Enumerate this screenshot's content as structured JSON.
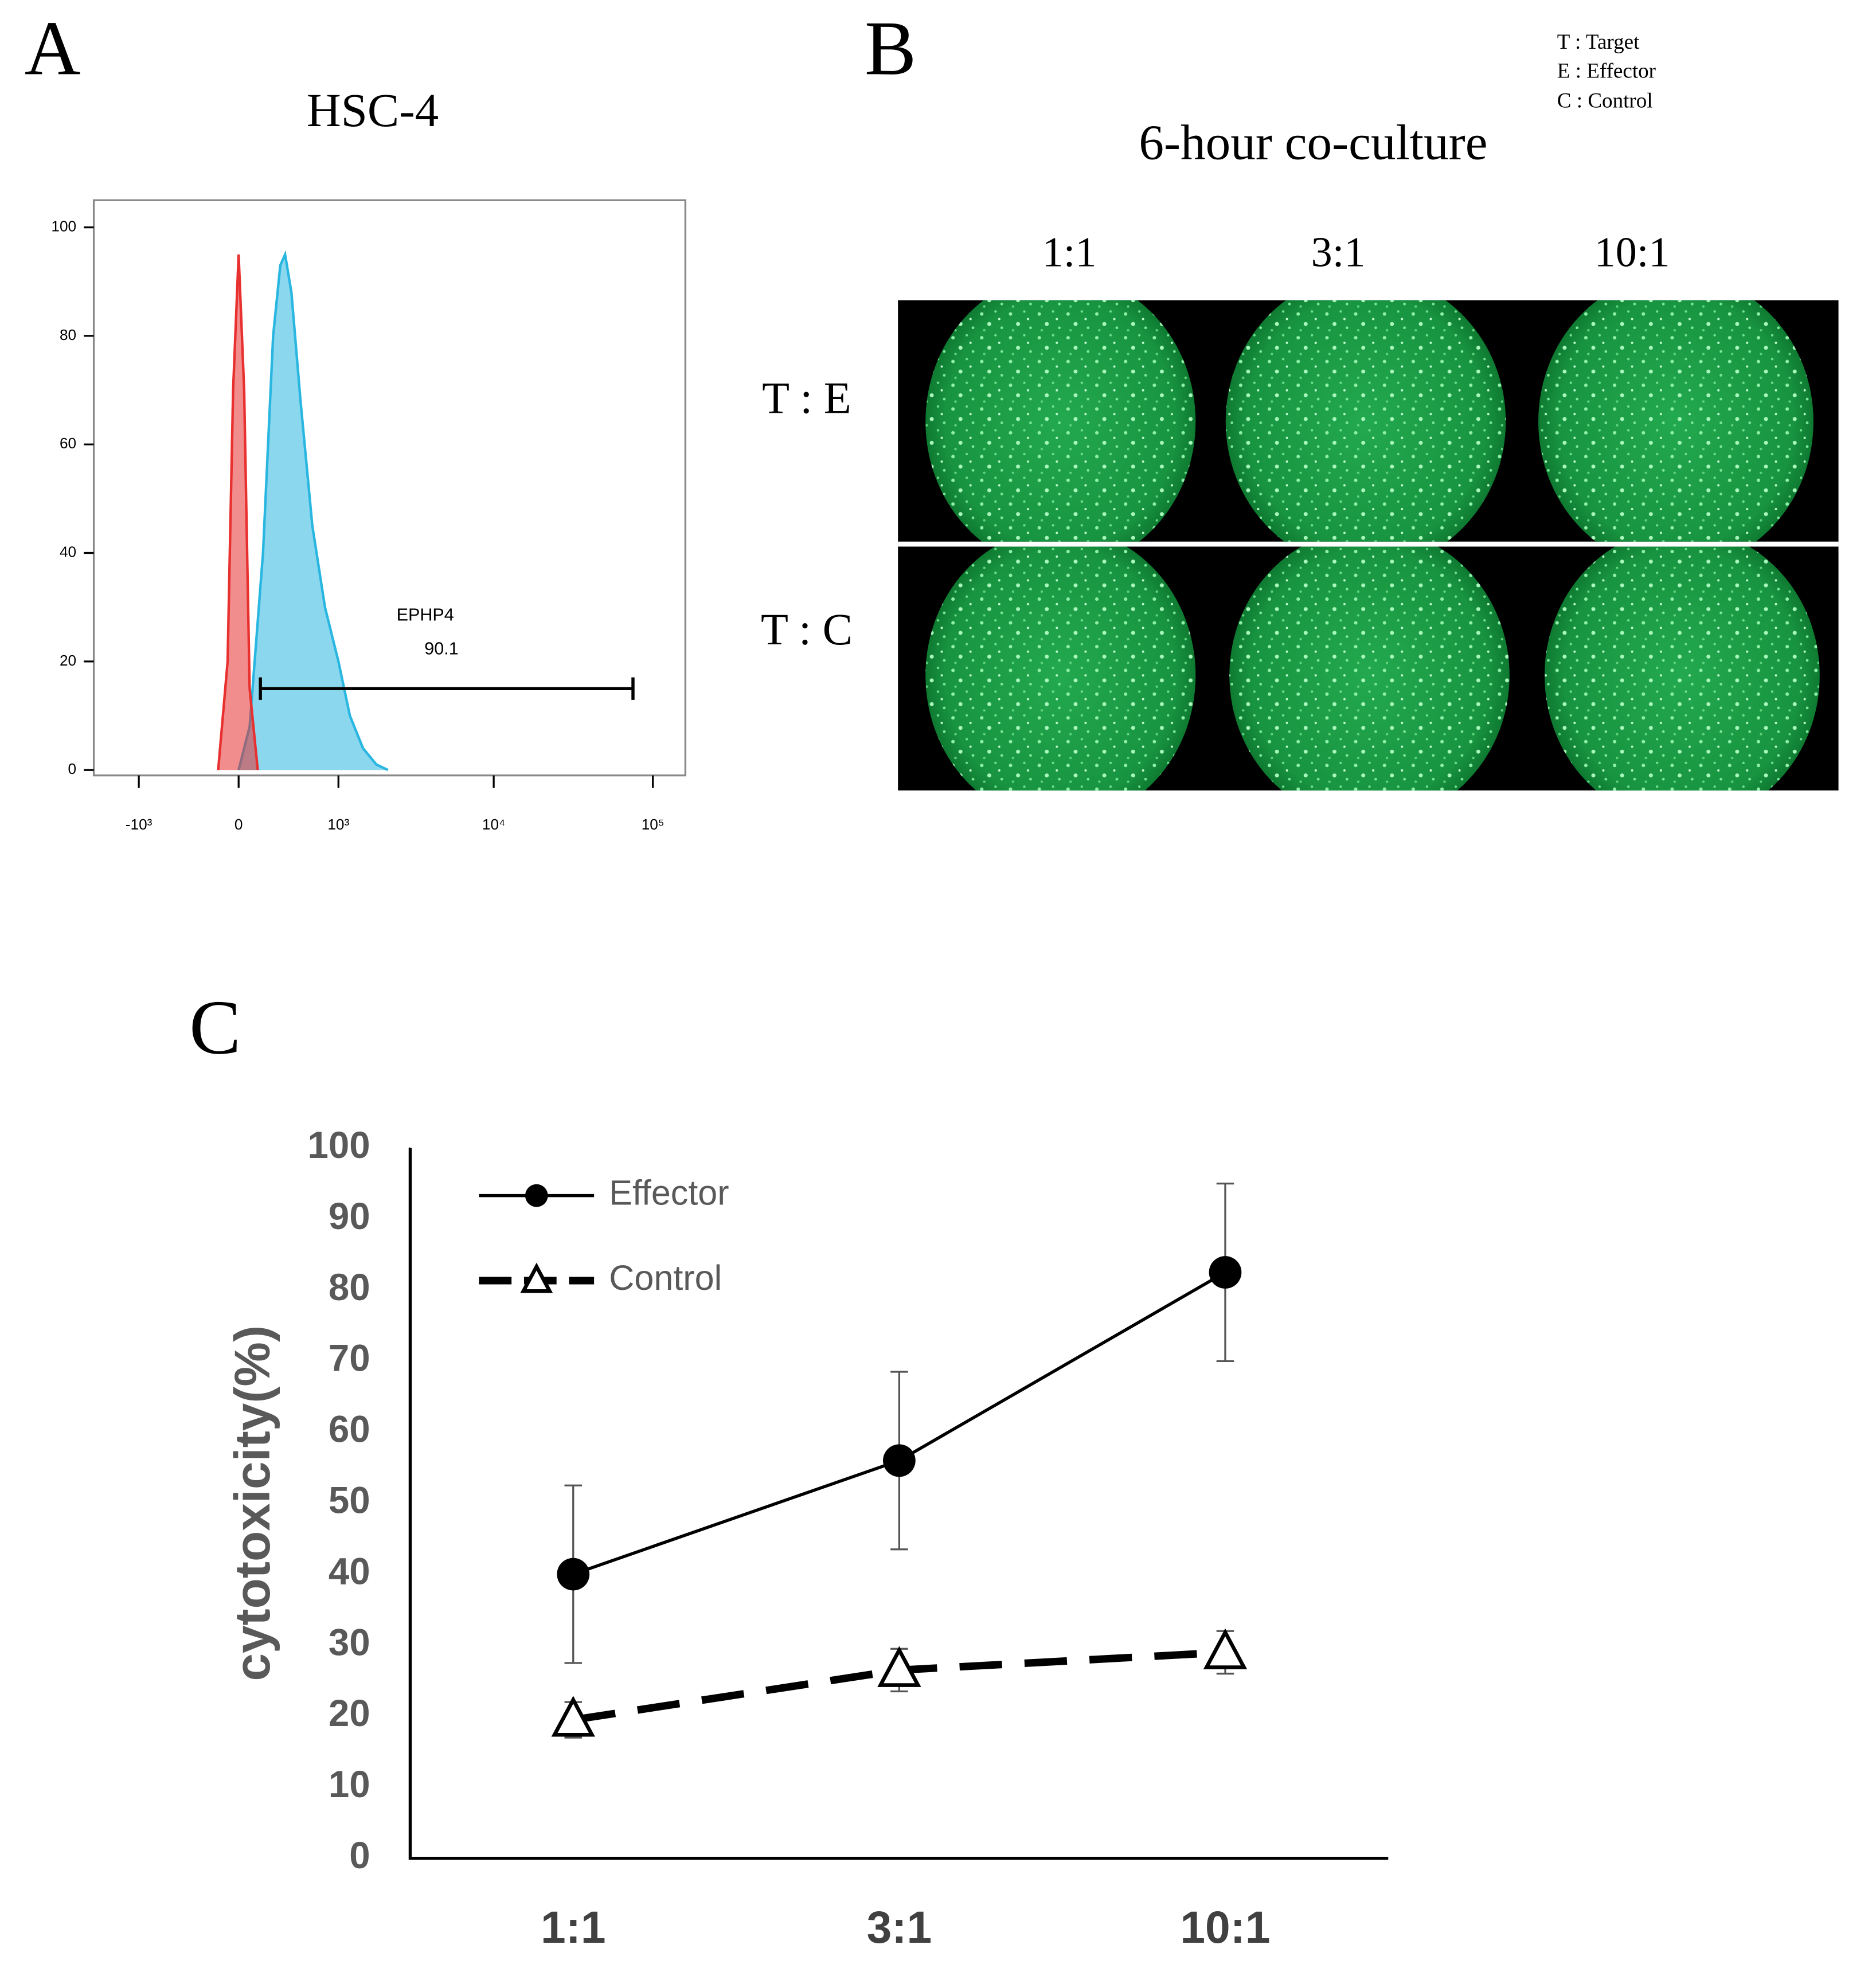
{
  "panel_labels": [
    "A",
    "B",
    "C"
  ],
  "panel_b": {
    "title": "6-hour co-culture",
    "key": [
      "T : Target",
      "E : Effector",
      "C : Control"
    ],
    "columns": [
      "1:1",
      "3:1",
      "10:1"
    ],
    "rows": [
      "T : E",
      "T : C"
    ]
  },
  "chart_data": [
    {
      "type": "area",
      "title": "HSC-4",
      "xscale": "biexponential",
      "xlim": [
        -2000,
        160000
      ],
      "ylim": [
        -1,
        105
      ],
      "xticks": [
        {
          "value": -1000,
          "label": "-10³"
        },
        0,
        {
          "value": 1000,
          "label": "10³"
        },
        {
          "value": 10000,
          "label": "10⁴"
        },
        {
          "value": 100000,
          "label": "10⁵"
        }
      ],
      "yticks": [
        0,
        20,
        40,
        60,
        80,
        100
      ],
      "series": [
        {
          "color": "#29b6e0",
          "x": [
            0,
            80,
            180,
            260,
            320,
            362,
            420,
            510,
            640,
            800,
            1000,
            1200,
            1470,
            1800,
            2140
          ],
          "values": [
            0,
            8,
            40,
            80,
            93,
            95,
            88,
            68,
            45,
            30,
            20,
            10,
            4,
            1,
            0
          ]
        },
        {
          "color": "#e8302f",
          "x": [
            -150,
            -80,
            -40,
            0,
            40,
            80,
            140
          ],
          "values": [
            0,
            20,
            70,
            95,
            70,
            15,
            0
          ]
        }
      ],
      "gate": {
        "name": "EPHP4",
        "percent": 90.1,
        "x": [
          160,
          75000
        ],
        "y": 15
      }
    },
    {
      "type": "line",
      "categories": [
        "1:1",
        "3:1",
        "10:1"
      ],
      "y_label": "cytotoxicity(%)",
      "ylim": [
        0,
        100
      ],
      "yticks": [
        0,
        10,
        20,
        30,
        40,
        50,
        60,
        70,
        80,
        90,
        100
      ],
      "legend": "upper left",
      "series": [
        {
          "name": "Effector",
          "color": "#000000",
          "line_style": "solid",
          "marker": "circle",
          "values": [
            40,
            56,
            82.5
          ],
          "errors": [
            12.5,
            12.5,
            12.5
          ]
        },
        {
          "name": "Control",
          "color": "#000000",
          "line_style": "dashed",
          "marker": "triangle-open",
          "values": [
            19.5,
            26.5,
            29
          ],
          "errors": [
            2.5,
            3,
            3
          ]
        }
      ]
    }
  ]
}
